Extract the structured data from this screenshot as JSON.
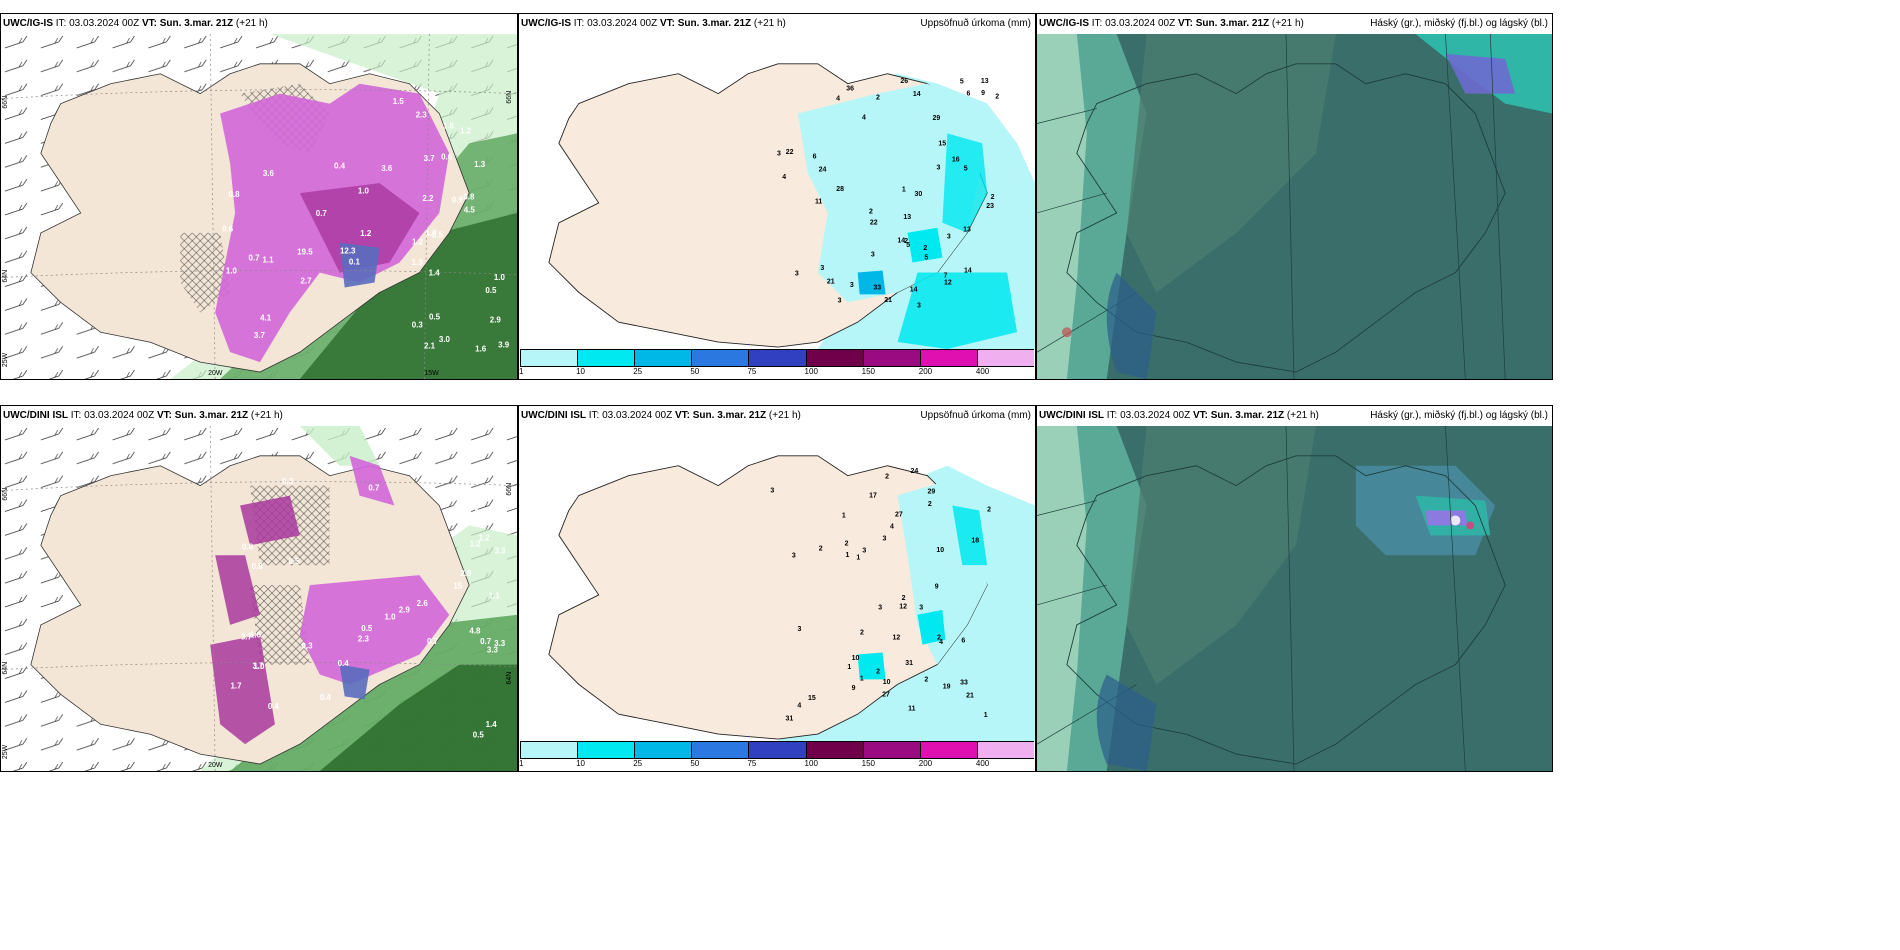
{
  "panels": [
    {
      "model": "UWC/IG-IS",
      "it_label": "IT:",
      "it": "03.03.2024 00Z",
      "vt_label": "VT:",
      "vt": "Sun. 3.mar. 21Z",
      "lead": "(+21 h)",
      "right_title": ""
    },
    {
      "model": "UWC/IG-IS",
      "it_label": "IT:",
      "it": "03.03.2024 00Z",
      "vt_label": "VT:",
      "vt": "Sun. 3.mar. 21Z",
      "lead": "(+21 h)",
      "right_title": "Uppsöfnuð úrkoma (mm)"
    },
    {
      "model": "UWC/IG-IS",
      "it_label": "IT:",
      "it": "03.03.2024 00Z",
      "vt_label": "VT:",
      "vt": "Sun. 3.mar. 21Z",
      "lead": "(+21 h)",
      "right_title": "Háský (gr.), miðský (fj.bl.) og lágský (bl.)"
    },
    {
      "model": "UWC/DINI ISL",
      "it_label": "IT:",
      "it": "03.03.2024 00Z",
      "vt_label": "VT:",
      "vt": "Sun. 3.mar. 21Z",
      "lead": "(+21 h)",
      "right_title": ""
    },
    {
      "model": "UWC/DINI ISL",
      "it_label": "IT:",
      "it": "03.03.2024 00Z",
      "vt_label": "VT:",
      "vt": "Sun. 3.mar. 21Z",
      "lead": "(+21 h)",
      "right_title": "Uppsöfnuð úrkoma (mm)"
    },
    {
      "model": "UWC/DINI ISL",
      "it_label": "IT:",
      "it": "03.03.2024 00Z",
      "vt_label": "VT:",
      "vt": "Sun. 3.mar. 21Z",
      "lead": "(+21 h)",
      "right_title": "Háský (gr.), miðský (fj.bl.) og lágský (bl.)"
    }
  ],
  "axis_labels": {
    "lat66": "66N",
    "lat64": "64N",
    "lon25": "25W",
    "lon20": "20W",
    "lon15": "15W"
  },
  "legend": {
    "ticks": [
      "1",
      "10",
      "25",
      "50",
      "75",
      "100",
      "150",
      "200",
      "400"
    ],
    "colors": [
      "#b6f6f8",
      "#00e8f0",
      "#00b8e8",
      "#2a78e0",
      "#3040c0",
      "#70004a",
      "#9a0a80",
      "#e010b0",
      "#f0b0f0"
    ]
  },
  "precip_values_top": [
    "3",
    "4",
    "3",
    "6",
    "16",
    "14",
    "23",
    "28",
    "22",
    "21",
    "3",
    "3",
    "2",
    "2",
    "3",
    "5",
    "4",
    "6",
    "3",
    "5",
    "7",
    "5",
    "3",
    "12",
    "30",
    "15",
    "11",
    "24",
    "21",
    "4",
    "5",
    "13",
    "29",
    "3",
    "36",
    "33",
    "26",
    "22",
    "2",
    "2",
    "2",
    "1",
    "2",
    "14",
    "14",
    "13",
    "14",
    "3",
    "13",
    "9"
  ],
  "precip_values_bottom": [
    "4",
    "6",
    "2",
    "12",
    "17",
    "24",
    "33",
    "29",
    "19",
    "1",
    "1",
    "1",
    "1",
    "2",
    "2",
    "2",
    "2",
    "3",
    "3",
    "2",
    "3",
    "15",
    "27",
    "3",
    "4",
    "2",
    "3",
    "4",
    "18",
    "31",
    "21",
    "2",
    "27",
    "31",
    "12",
    "11",
    "10",
    "10",
    "3",
    "2",
    "2",
    "10",
    "1",
    "9",
    "9",
    "1",
    "3"
  ],
  "snow_values_top": [
    "1.3",
    "1.0",
    "0.9",
    "0.5",
    "0.3",
    "0.6",
    "0.8",
    "1.0",
    "2.9",
    "3.0",
    "1.8",
    "1.2",
    "1.0",
    "1.4",
    "2.7",
    "1.6",
    "1.2",
    "0.7",
    "1.8",
    "0.4",
    "0.1",
    "0.6",
    "2.2",
    "2.3",
    "4.5",
    "4.1",
    "3.6",
    "3.7",
    "3.9",
    "1.1",
    "1.3",
    "1.5",
    "0.8",
    "0.5",
    "0.7",
    "3.7",
    "3.6",
    "1.2",
    "2.5",
    "2.1",
    "12.3",
    "19.5"
  ],
  "snow_values_bottom": [
    "0.5",
    "1.0",
    "0.8",
    "0.4",
    "0.7",
    "1.1",
    "0.5",
    "0.3",
    "0.4",
    "0.3",
    "0.7",
    "1.7",
    "2.9",
    "3.3",
    "4.8",
    "2.3",
    "3.3",
    "3.7",
    "3.7",
    "2.9",
    "2.3",
    "1.3",
    "1.4",
    "0.7",
    "0.6",
    "1.0",
    "1.2",
    "1.2",
    "1.6",
    "2.6",
    "3.3",
    "15",
    "0.5",
    "0.4",
    "0.8"
  ]
}
